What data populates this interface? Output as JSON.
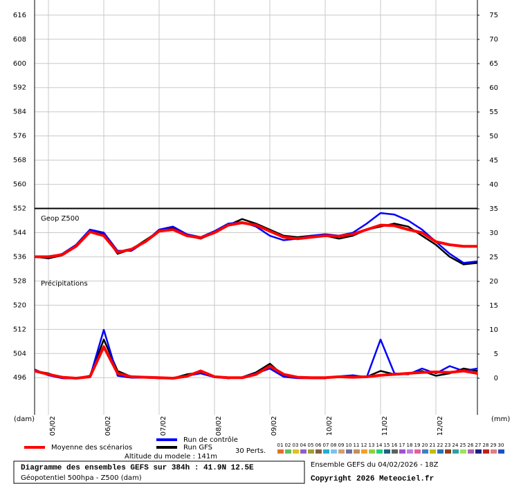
{
  "chart_data": {
    "type": "line",
    "annotations": [
      "Geop Z500",
      "Précipitations"
    ],
    "y_label": "(dam)",
    "y2_label": "(mm)",
    "x": [
      0,
      6,
      12,
      18,
      24,
      30,
      36,
      42,
      48,
      54,
      60,
      66,
      72,
      78,
      84,
      90,
      96,
      102,
      108,
      114,
      120,
      126,
      132,
      138,
      144,
      150,
      156,
      162,
      168,
      174,
      180,
      186,
      192
    ],
    "xlim": [
      0,
      192
    ],
    "xticks": [
      {
        "value": 6,
        "label": "05/02"
      },
      {
        "value": 30,
        "label": "06/02"
      },
      {
        "value": 54,
        "label": "07/02"
      },
      {
        "value": 78,
        "label": "08/02"
      },
      {
        "value": 102,
        "label": "09/02"
      },
      {
        "value": 126,
        "label": "10/02"
      },
      {
        "value": 150,
        "label": "11/02"
      },
      {
        "value": 174,
        "label": "12/02"
      }
    ],
    "ylim": [
      483.7,
      621
    ],
    "yticks": [
      496,
      504,
      512,
      520,
      528,
      536,
      544,
      552,
      560,
      568,
      576,
      584,
      592,
      600,
      608,
      616
    ],
    "y2lim": [
      -7.57,
      78.14
    ],
    "y2ticks": [
      0,
      5,
      10,
      15,
      20,
      25,
      30,
      35,
      40,
      45,
      50,
      55,
      60,
      65,
      70,
      75
    ],
    "separator": 552,
    "grid": true,
    "series": [
      {
        "name": "Moyenne des scénarios",
        "color": "#ff0000",
        "values": [
          536.0,
          536.0,
          536.7,
          539.5,
          544.3,
          543.0,
          537.5,
          538.5,
          541.0,
          544.5,
          545.0,
          543.0,
          542.3,
          544.0,
          546.5,
          547.3,
          546.5,
          544.5,
          542.5,
          542.0,
          542.5,
          543.0,
          542.8,
          543.5,
          545.0,
          546.5,
          546.3,
          545.0,
          544.0,
          541.0,
          540.0,
          539.5,
          539.5
        ],
        "precipitation": [
          1.5,
          0.8,
          0.2,
          0,
          0.3,
          6.5,
          1.0,
          0.3,
          0.2,
          0.1,
          0,
          0.4,
          1.5,
          0.3,
          0.1,
          0.1,
          0.8,
          2.5,
          0.8,
          0.2,
          0.1,
          0.1,
          0.3,
          0.2,
          0.3,
          0.6,
          0.8,
          1.0,
          1.2,
          1.3,
          1.2,
          1.5,
          1.0
        ]
      },
      {
        "name": "Run de contrôle",
        "color": "#0000ff",
        "values": [
          536,
          535.8,
          537,
          540,
          545,
          544,
          538,
          538,
          541,
          545,
          546,
          543.5,
          542.5,
          544.5,
          547,
          547.5,
          546,
          543,
          541.5,
          542,
          543,
          543.5,
          543,
          544,
          547,
          550.5,
          550,
          548,
          545,
          541,
          537,
          534,
          534.5
        ],
        "precipitation": [
          1.8,
          0.6,
          0,
          0,
          0.2,
          10,
          0.5,
          0.1,
          0.1,
          0,
          0,
          0.5,
          1.0,
          0.2,
          0,
          0.2,
          1.0,
          2,
          0.3,
          0,
          0,
          0,
          0.4,
          0.6,
          0.2,
          8.0,
          1.0,
          0.8,
          2.0,
          1.0,
          2.5,
          1.5,
          2.0
        ]
      },
      {
        "name": "Run GFS",
        "color": "#000000",
        "values": [
          536,
          535.5,
          536.5,
          539.5,
          544.5,
          543.5,
          537,
          538.5,
          541.5,
          544.5,
          545.5,
          543,
          542,
          544,
          546.5,
          548.5,
          547,
          545,
          543,
          542.5,
          543,
          543,
          542,
          543,
          545,
          546,
          547,
          546,
          543,
          540,
          536,
          533.5,
          534
        ],
        "precipitation": [
          1.5,
          1.0,
          0,
          0,
          0.5,
          8,
          1.5,
          0.3,
          0.2,
          0,
          0,
          0.8,
          1.2,
          0.3,
          0,
          0.2,
          1.2,
          3,
          0.5,
          0.1,
          0,
          0,
          0.3,
          0.5,
          0.3,
          1.5,
          0.8,
          1.0,
          1.5,
          0.5,
          1.0,
          2.0,
          1.5
        ]
      }
    ],
    "perturbations": {
      "label": "30 Perts.",
      "members": [
        {
          "name": "01",
          "color": "#e07030"
        },
        {
          "name": "02",
          "color": "#60c060"
        },
        {
          "name": "03",
          "color": "#e0c020"
        },
        {
          "name": "04",
          "color": "#9060c0"
        },
        {
          "name": "05",
          "color": "#a0a030"
        },
        {
          "name": "06",
          "color": "#806040"
        },
        {
          "name": "07",
          "color": "#20b0d0"
        },
        {
          "name": "08",
          "color": "#80c0f0"
        },
        {
          "name": "09",
          "color": "#d0a070"
        },
        {
          "name": "10",
          "color": "#7070a0"
        },
        {
          "name": "11",
          "color": "#c09060"
        },
        {
          "name": "12",
          "color": "#f0a030"
        },
        {
          "name": "13",
          "color": "#90d040"
        },
        {
          "name": "14",
          "color": "#20d080"
        },
        {
          "name": "15",
          "color": "#206080"
        },
        {
          "name": "16",
          "color": "#606060"
        },
        {
          "name": "17",
          "color": "#a050d0"
        },
        {
          "name": "18",
          "color": "#c080e0"
        },
        {
          "name": "19",
          "color": "#e060a0"
        },
        {
          "name": "20",
          "color": "#4080c0"
        },
        {
          "name": "21",
          "color": "#c0c000"
        },
        {
          "name": "22",
          "color": "#3070b0"
        },
        {
          "name": "23",
          "color": "#904020"
        },
        {
          "name": "24",
          "color": "#30a0a0"
        },
        {
          "name": "25",
          "color": "#a0e060"
        },
        {
          "name": "26",
          "color": "#b060b0"
        },
        {
          "name": "27",
          "color": "#202080"
        },
        {
          "name": "28",
          "color": "#c02020"
        },
        {
          "name": "29",
          "color": "#e08080"
        },
        {
          "name": "30",
          "color": "#2050c0"
        }
      ]
    },
    "altitude": "Altitude du modele : 141m",
    "info_title": "Diagramme des ensembles GEFS sur 384h : 41.9N 12.5E",
    "info_subtitle": "Géopotentiel 500hpa - Z500 (dam)",
    "run_info": "Ensemble GEFS du 04/02/2026 - 18Z",
    "copyright": "Copyright 2026 Meteociel.fr"
  }
}
